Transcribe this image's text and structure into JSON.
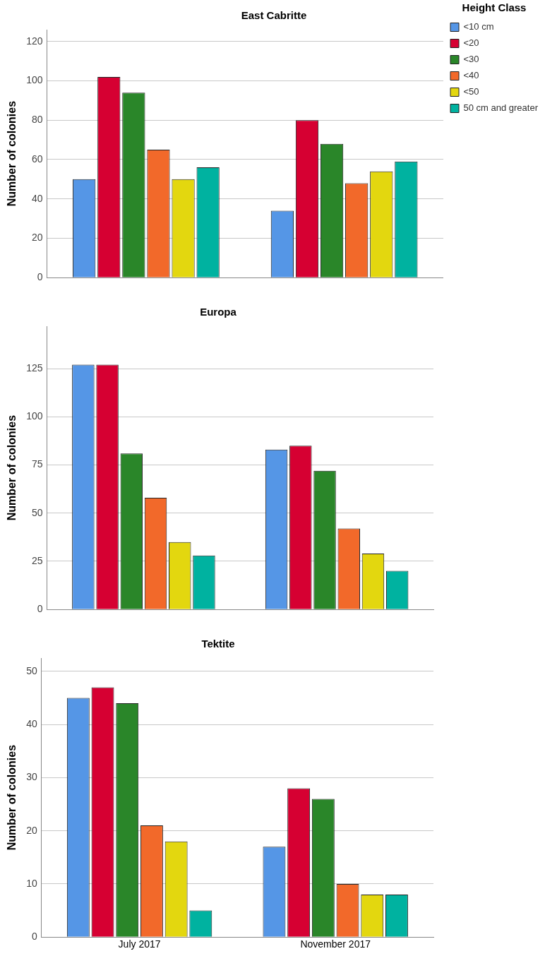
{
  "chart_data": [
    {
      "type": "bar",
      "title": "East Cabritte",
      "ylabel": "Number of colonies",
      "legend_title": "Height Class",
      "categories": [
        null,
        null
      ],
      "series": [
        {
          "name": "<10 cm",
          "color": "#5596e6",
          "values": [
            50,
            34
          ]
        },
        {
          "name": "<20",
          "color": "#d60032",
          "values": [
            102,
            80
          ]
        },
        {
          "name": "<30",
          "color": "#2a8629",
          "values": [
            94,
            68
          ]
        },
        {
          "name": "<40",
          "color": "#f2692a",
          "values": [
            65,
            48
          ]
        },
        {
          "name": "<50",
          "color": "#e3d70f",
          "values": [
            50,
            54
          ]
        },
        {
          "name": "50 cm and greater",
          "color": "#00b2a0",
          "values": [
            56,
            59
          ]
        }
      ],
      "ylim": [
        0,
        126
      ],
      "yticks": [
        0,
        20,
        40,
        60,
        80,
        100,
        120
      ],
      "grid": "y",
      "legend": "right"
    },
    {
      "type": "bar",
      "title": "Europa",
      "ylabel": "Number of colonies",
      "categories": [
        null,
        null
      ],
      "series": [
        {
          "color": "#5596e6",
          "values": [
            127,
            83
          ]
        },
        {
          "color": "#d60032",
          "values": [
            127,
            85
          ]
        },
        {
          "color": "#2a8629",
          "values": [
            81,
            72
          ]
        },
        {
          "color": "#f2692a",
          "values": [
            58,
            42
          ]
        },
        {
          "color": "#e3d70f",
          "values": [
            35,
            29
          ]
        },
        {
          "color": "#00b2a0",
          "values": [
            28,
            20
          ]
        }
      ],
      "ylim": [
        0,
        147
      ],
      "yticks": [
        0,
        25,
        50,
        75,
        100,
        125
      ],
      "grid": "y"
    },
    {
      "type": "bar",
      "title": "Tektite",
      "ylabel": "Number of colonies",
      "categories": [
        "July 2017",
        "November 2017"
      ],
      "series": [
        {
          "color": "#5596e6",
          "values": [
            45,
            17
          ]
        },
        {
          "color": "#d60032",
          "values": [
            47,
            28
          ]
        },
        {
          "color": "#2a8629",
          "values": [
            44,
            26
          ]
        },
        {
          "color": "#f2692a",
          "values": [
            21,
            10
          ]
        },
        {
          "color": "#e3d70f",
          "values": [
            18,
            8
          ]
        },
        {
          "color": "#00b2a0",
          "values": [
            5,
            8
          ]
        }
      ],
      "ylim": [
        0,
        52.5
      ],
      "yticks": [
        0,
        10,
        20,
        30,
        40,
        50
      ],
      "grid": "y"
    }
  ]
}
